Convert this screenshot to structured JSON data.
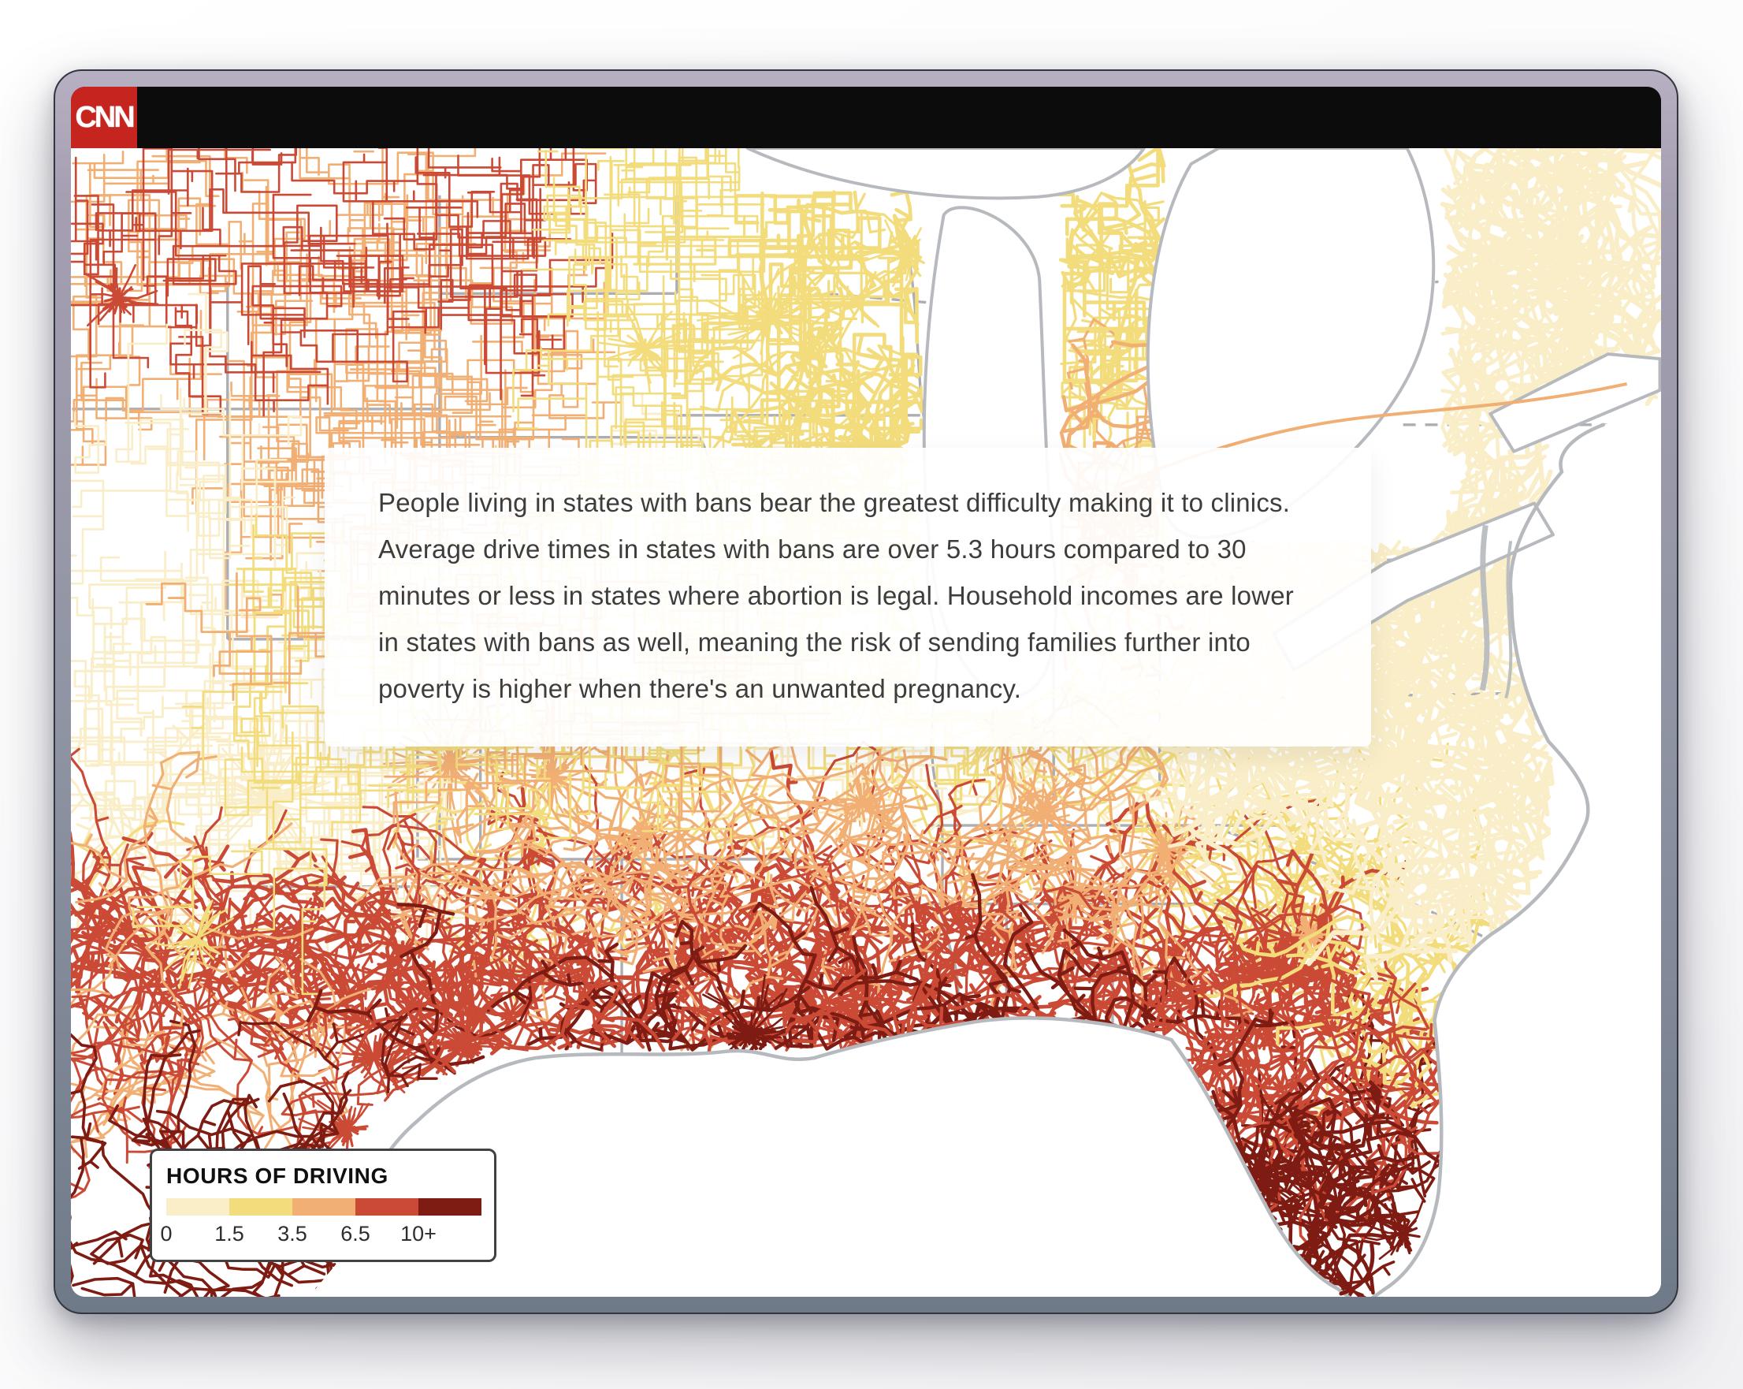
{
  "header": {
    "brand": "CNN",
    "brand_color": "#C6241E",
    "bar_color": "#0C0C0C"
  },
  "annotation": {
    "text": "People living in states with bans bear the greatest difficulty making it to clinics. Average drive times in states with bans are over 5.3 hours compared to 30 minutes or less in states where abortion is legal. Household incomes are lower in states with bans as well, meaning the risk of sending families further into poverty is higher when there's an unwanted pregnancy."
  },
  "legend": {
    "title": "HOURS OF DRIVING",
    "stops": [
      {
        "label": "0",
        "color": "#FAEEC8"
      },
      {
        "label": "1.5",
        "color": "#F2DC7C"
      },
      {
        "label": "3.5",
        "color": "#F1AF74"
      },
      {
        "label": "6.5",
        "color": "#CB4A35"
      },
      {
        "label": "10+",
        "color": "#7E1B12"
      }
    ]
  },
  "map": {
    "description": "Road networks of the central and eastern United States colored by hours of driving to the nearest abortion clinic",
    "boundary_color": "#A9AAAE",
    "coast_color": "#B6B9BD",
    "water_color": "#FFFFFF",
    "faded_road_color": "#EAD2CB"
  }
}
